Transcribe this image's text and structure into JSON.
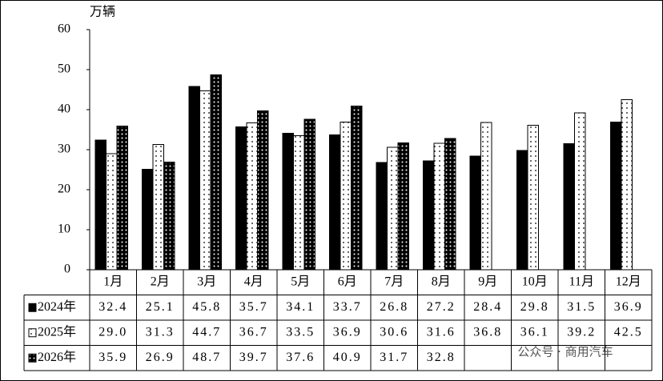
{
  "chart_data": {
    "type": "bar",
    "y_label": "万辆",
    "categories": [
      "1月",
      "2月",
      "3月",
      "4月",
      "5月",
      "6月",
      "7月",
      "8月",
      "9月",
      "10月",
      "11月",
      "12月"
    ],
    "series": [
      {
        "name": "2024年",
        "color": "#000000",
        "pattern": "solid",
        "values": [
          32.4,
          25.1,
          45.8,
          35.7,
          34.1,
          33.7,
          26.8,
          27.2,
          28.4,
          29.8,
          31.5,
          36.9
        ],
        "value_labels": [
          "32.4",
          "25.1",
          "45.8",
          "35.7",
          "34.1",
          "33.7",
          "26.8",
          "27.2",
          "28.4",
          "29.8",
          "31.5",
          "36.9"
        ]
      },
      {
        "name": "2025年",
        "color": "#ffffff",
        "pattern": "dots-on-white",
        "values": [
          29.0,
          31.3,
          44.7,
          36.7,
          33.5,
          36.9,
          30.6,
          31.6,
          36.8,
          36.1,
          39.2,
          42.5
        ],
        "value_labels": [
          "29.0",
          "31.3",
          "44.7",
          "36.7",
          "33.5",
          "36.9",
          "30.6",
          "31.6",
          "36.8",
          "36.1",
          "39.2",
          "42.5"
        ]
      },
      {
        "name": "2026年",
        "color": "#000000",
        "pattern": "dots-on-black",
        "values": [
          35.9,
          26.9,
          48.7,
          39.7,
          37.6,
          40.9,
          31.7,
          32.8,
          null,
          null,
          null,
          null
        ],
        "value_labels": [
          "35.9",
          "26.9",
          "48.7",
          "39.7",
          "37.6",
          "40.9",
          "31.7",
          "32.8",
          null,
          null,
          null,
          null
        ]
      }
    ],
    "ylim": [
      0,
      60
    ],
    "yticks": [
      0,
      10,
      20,
      30,
      40,
      50,
      60
    ],
    "grid": false,
    "watermark": "公众号 · 商用汽车"
  }
}
